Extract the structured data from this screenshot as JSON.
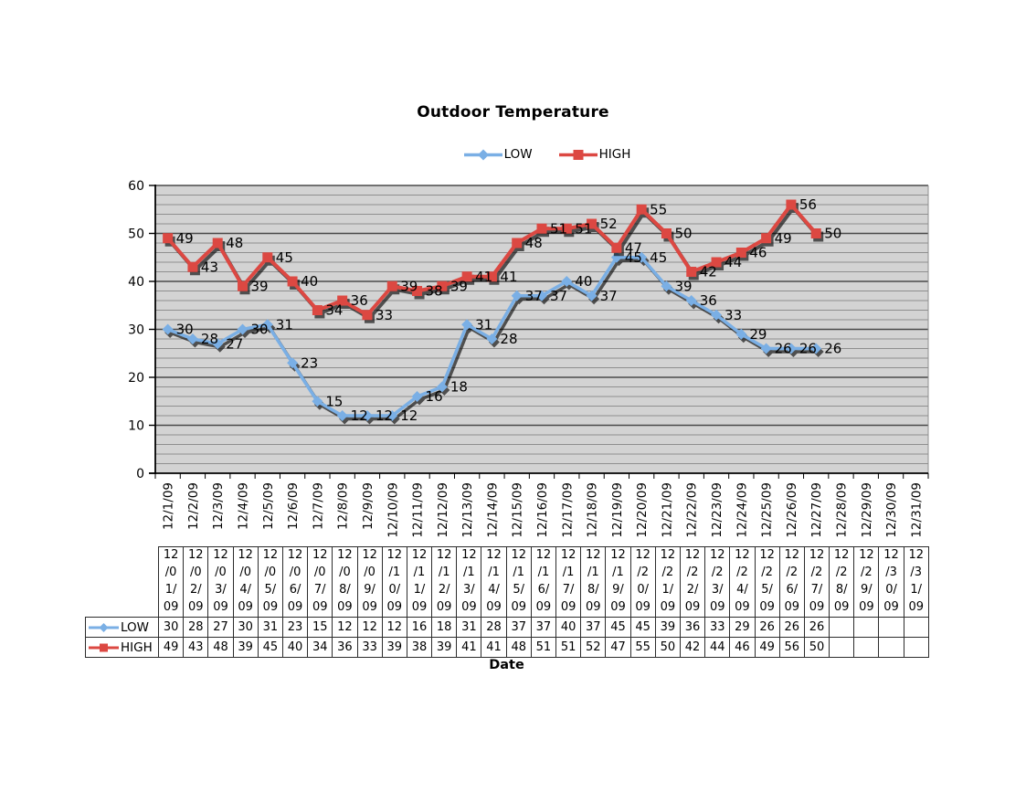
{
  "chart_data": {
    "type": "line",
    "title": "Outdoor Temperature",
    "xlabel": "Date",
    "ylabel": "",
    "ylim": [
      0,
      60
    ],
    "ytick_step": 10,
    "gridline_step": 2,
    "grid": true,
    "legend_position": "top",
    "plot_bg": "#D3D3D3",
    "minor_grid_color": "#8F8F8F",
    "major_grid_color": "#4A4A4A",
    "categories": [
      "12/1/09",
      "12/2/09",
      "12/3/09",
      "12/4/09",
      "12/5/09",
      "12/6/09",
      "12/7/09",
      "12/8/09",
      "12/9/09",
      "12/10/09",
      "12/11/09",
      "12/12/09",
      "12/13/09",
      "12/14/09",
      "12/15/09",
      "12/16/09",
      "12/17/09",
      "12/18/09",
      "12/19/09",
      "12/20/09",
      "12/21/09",
      "12/22/09",
      "12/23/09",
      "12/24/09",
      "12/25/09",
      "12/26/09",
      "12/27/09",
      "12/28/09",
      "12/29/09",
      "12/30/09",
      "12/31/09"
    ],
    "series": [
      {
        "name": "LOW",
        "color": "#7AAFE5",
        "marker": "diamond",
        "values": [
          30,
          28,
          27,
          30,
          31,
          23,
          15,
          12,
          12,
          12,
          16,
          18,
          31,
          28,
          37,
          37,
          40,
          37,
          45,
          45,
          39,
          36,
          33,
          29,
          26,
          26,
          26,
          null,
          null,
          null,
          null
        ]
      },
      {
        "name": "HIGH",
        "color": "#DC4842",
        "marker": "square",
        "values": [
          49,
          43,
          48,
          39,
          45,
          40,
          34,
          36,
          33,
          39,
          38,
          39,
          41,
          41,
          48,
          51,
          51,
          52,
          47,
          55,
          50,
          42,
          44,
          46,
          49,
          56,
          50,
          null,
          null,
          null,
          null
        ]
      }
    ]
  },
  "table": {
    "header_dates": [
      "12/01/09",
      "12/02/09",
      "12/03/09",
      "12/04/09",
      "12/05/09",
      "12/06/09",
      "12/07/09",
      "12/08/09",
      "12/09/09",
      "12/10/09",
      "12/11/09",
      "12/12/09",
      "12/13/09",
      "12/14/09",
      "12/15/09",
      "12/16/09",
      "12/17/09",
      "12/18/09",
      "12/19/09",
      "12/20/09",
      "12/21/09",
      "12/22/09",
      "12/23/09",
      "12/24/09",
      "12/25/09",
      "12/26/09",
      "12/27/09",
      "12/28/09",
      "12/29/09",
      "12/30/09",
      "12/31/09"
    ],
    "row_labels": [
      "LOW",
      "HIGH"
    ]
  }
}
